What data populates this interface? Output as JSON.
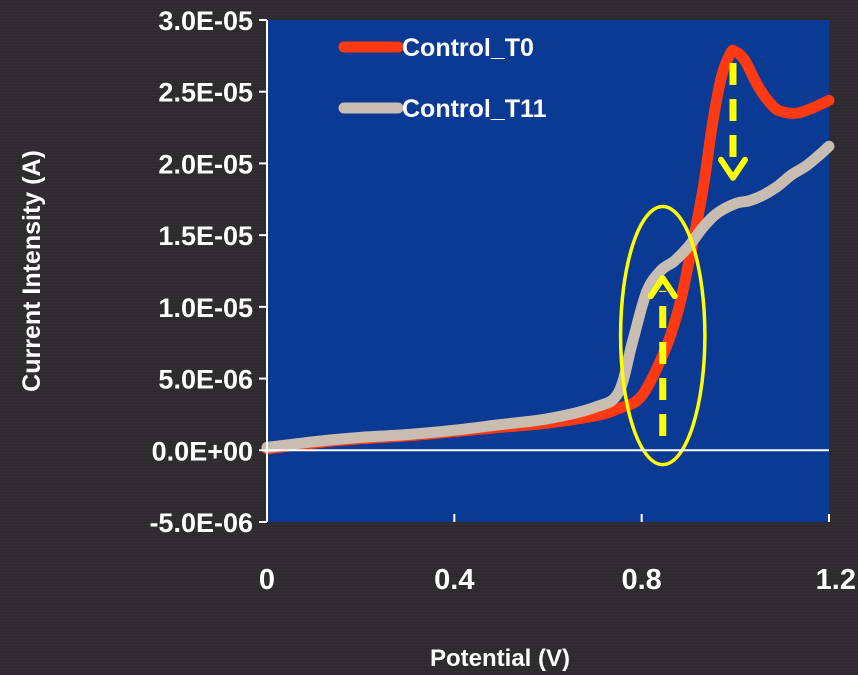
{
  "chart_data": {
    "type": "line",
    "title": "",
    "xlabel": "Potential (V)",
    "ylabel": "Current Intensity (A)",
    "xlim": [
      0,
      1.2
    ],
    "ylim": [
      -5e-06,
      3e-05
    ],
    "x_ticks": [
      0,
      0.4,
      0.8,
      1.2
    ],
    "x_tick_labels": [
      "0",
      "0.4",
      "0.8",
      "1.2"
    ],
    "y_ticks": [
      -5e-06,
      0,
      5e-06,
      1e-05,
      1.5e-05,
      2e-05,
      2.5e-05,
      3e-05
    ],
    "y_tick_labels": [
      "-5.0E-06",
      "0.0E+00",
      "5.0E-06",
      "1.0E-05",
      "1.5E-05",
      "2.0E-05",
      "2.5E-05",
      "3.0E-05"
    ],
    "grid": false,
    "legend_position": "top-center",
    "plot_background": "#0a3a94",
    "series": [
      {
        "name": "Control_T0",
        "color": "#ff3a12",
        "x": [
          0,
          0.1,
          0.2,
          0.3,
          0.4,
          0.5,
          0.6,
          0.7,
          0.75,
          0.8,
          0.85,
          0.88,
          0.9,
          0.93,
          0.95,
          0.97,
          0.99,
          1.0,
          1.02,
          1.05,
          1.08,
          1.1,
          1.13,
          1.16,
          1.2
        ],
        "y": [
          1e-07,
          5e-07,
          8e-07,
          1e-06,
          1.3e-06,
          1.6e-06,
          1.9e-06,
          2.4e-06,
          2.9e-06,
          3.8e-06,
          7e-06,
          1e-05,
          1.3e-05,
          1.8e-05,
          2.25e-05,
          2.6e-05,
          2.77e-05,
          2.78e-05,
          2.72e-05,
          2.53e-05,
          2.4e-05,
          2.36e-05,
          2.35e-05,
          2.38e-05,
          2.44e-05
        ]
      },
      {
        "name": "Control_T11",
        "color": "#c9bdb2",
        "x": [
          0,
          0.1,
          0.2,
          0.3,
          0.4,
          0.5,
          0.6,
          0.7,
          0.75,
          0.78,
          0.81,
          0.84,
          0.87,
          0.9,
          0.93,
          0.96,
          1.0,
          1.03,
          1.06,
          1.09,
          1.12,
          1.15,
          1.18,
          1.2
        ],
        "y": [
          2e-07,
          6e-07,
          9e-07,
          1.1e-06,
          1.4e-06,
          1.8e-06,
          2.2e-06,
          3e-06,
          4e-06,
          7.5e-06,
          1.1e-05,
          1.25e-05,
          1.32e-05,
          1.42e-05,
          1.55e-05,
          1.65e-05,
          1.72e-05,
          1.74e-05,
          1.78e-05,
          1.84e-05,
          1.92e-05,
          1.98e-05,
          2.06e-05,
          2.12e-05
        ]
      }
    ],
    "annotations": [
      {
        "kind": "ellipse",
        "color": "#ffff00",
        "cx": 0.845,
        "cy": 8e-06,
        "rx": 0.09,
        "ry": 9e-06
      },
      {
        "kind": "dashed-arrow-up",
        "color": "#ffff00",
        "x": 0.845,
        "y_from": 1e-06,
        "y_to": 1.2e-05
      },
      {
        "kind": "dashed-arrow-down",
        "color": "#ffff00",
        "x": 0.995,
        "y_from": 2.7e-05,
        "y_to": 1.9e-05
      }
    ]
  }
}
